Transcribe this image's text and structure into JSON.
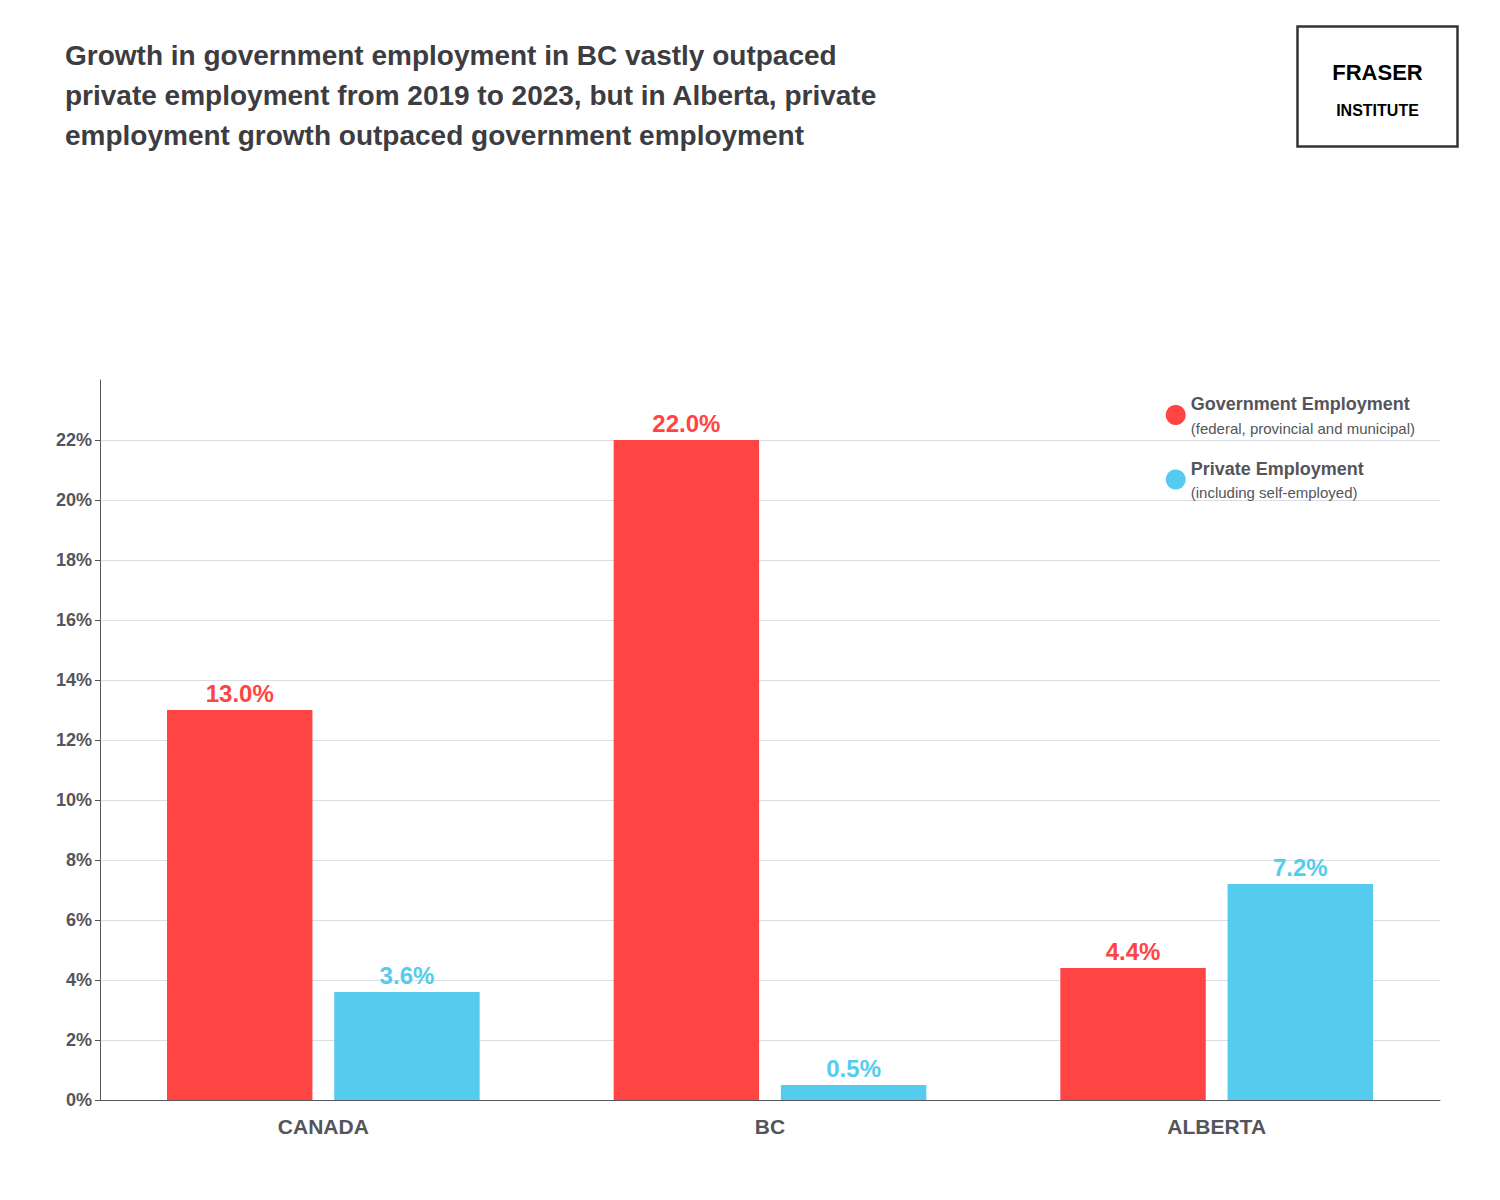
{
  "chart_data": {
    "type": "bar",
    "title": "Growth in government employment in BC vastly outpaced\nprivate employment from 2019 to 2023, but in Alberta, private\nemployment growth outpaced government employment",
    "categories": [
      "CANADA",
      "BC",
      "ALBERTA"
    ],
    "series": [
      {
        "name": "Government Employment",
        "color": "#FF4444",
        "values": [
          13.0,
          22.0,
          4.4
        ],
        "value_labels": [
          "13.0%",
          "22.0%",
          "4.4%"
        ]
      },
      {
        "name": "Private Employment",
        "color": "#55CCEE",
        "values": [
          3.6,
          0.5,
          7.2
        ],
        "value_labels": [
          "3.6%",
          "0.5%",
          "7.2%"
        ]
      }
    ],
    "annotations": [
      "(federal, provincial and municipal)",
      "(including self-employed)",
      "FRASER",
      "INSTITUTE"
    ],
    "ylim": [
      0,
      24
    ],
    "yticks": [
      {
        "value": 0,
        "label": "0%"
      },
      {
        "value": 2,
        "label": "2%"
      },
      {
        "value": 4,
        "label": "4%"
      },
      {
        "value": 6,
        "label": "6%"
      },
      {
        "value": 8,
        "label": "8%"
      },
      {
        "value": 10,
        "label": "10%"
      },
      {
        "value": 12,
        "label": "12%"
      },
      {
        "value": 14,
        "label": "14%"
      },
      {
        "value": 16,
        "label": "16%"
      },
      {
        "value": 18,
        "label": "18%"
      },
      {
        "value": 20,
        "label": "20%"
      },
      {
        "value": 22,
        "label": "22%"
      }
    ],
    "grid": true,
    "legend": "upper right",
    "data_labels": true
  }
}
